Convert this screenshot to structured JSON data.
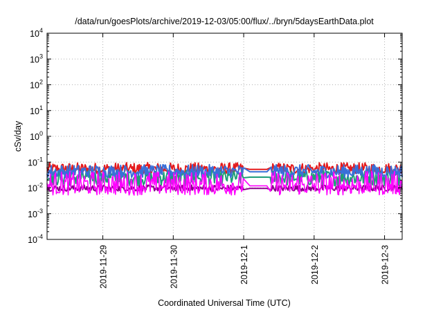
{
  "chart_data": {
    "type": "line",
    "title": "/data/run/goesPlots/archive/2019-12-03/05:00/flux/../bryn/5daysEarthData.plot",
    "xlabel": "Coordinated Universal Time (UTC)",
    "ylabel": "cSv/day",
    "y_scale": "log",
    "ylim": [
      0.0001,
      10000
    ],
    "y_ticks": [
      {
        "value": 0.0001,
        "base": "10",
        "exp": "-4"
      },
      {
        "value": 0.001,
        "base": "10",
        "exp": "-3"
      },
      {
        "value": 0.01,
        "base": "10",
        "exp": "-2"
      },
      {
        "value": 0.1,
        "base": "10",
        "exp": "-1"
      },
      {
        "value": 1,
        "base": "10",
        "exp": "0"
      },
      {
        "value": 10,
        "base": "10",
        "exp": "1"
      },
      {
        "value": 100,
        "base": "10",
        "exp": "2"
      },
      {
        "value": 1000,
        "base": "10",
        "exp": "3"
      },
      {
        "value": 10000,
        "base": "10",
        "exp": "4"
      }
    ],
    "xlim": [
      "2019-11-28T05:00",
      "2019-12-03T06:00"
    ],
    "x_ticks": [
      "2019-11-29",
      "2019-11-30",
      "2019-12-1",
      "2019-12-2",
      "2019-12-3"
    ],
    "grid": true,
    "data_gap": [
      "2019-12-01T00:00",
      "2019-12-01T09:00"
    ],
    "series": [
      {
        "color": "#e41a1c",
        "mean": 0.052,
        "low": 0.036,
        "high": 0.095
      },
      {
        "color": "#1f9e78",
        "mean": 0.026,
        "low": 0.012,
        "high": 0.048
      },
      {
        "color": "#8b008b",
        "mean": 0.0095,
        "low": 0.0075,
        "high": 0.013
      },
      {
        "color": "#3a6fd8",
        "mean": 0.042,
        "low": 0.025,
        "high": 0.08
      },
      {
        "color": "#ff00ff",
        "mean": 0.012,
        "low": 0.0052,
        "high": 0.045
      }
    ]
  }
}
